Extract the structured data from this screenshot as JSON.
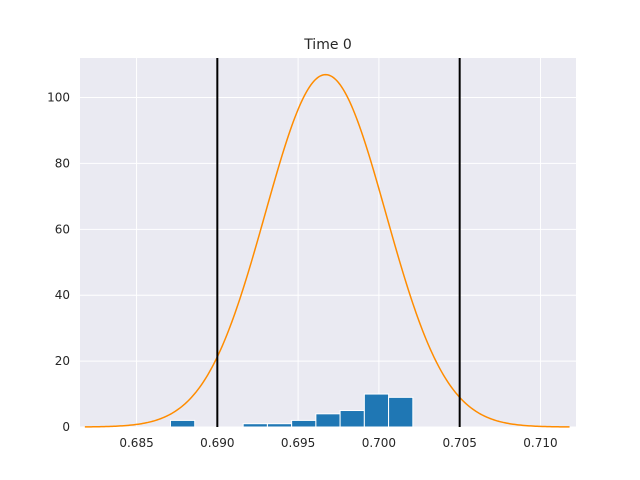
{
  "chart_data": {
    "type": "bar",
    "title": "Time 0",
    "xlabel": "",
    "ylabel": "",
    "xlim": [
      0.6815,
      0.7122
    ],
    "ylim": [
      0,
      112
    ],
    "grid": true,
    "x_ticks": [
      0.685,
      0.69,
      0.695,
      0.7,
      0.705,
      0.71
    ],
    "x_tick_labels": [
      "0.685",
      "0.690",
      "0.695",
      "0.700",
      "0.705",
      "0.710"
    ],
    "y_ticks": [
      0,
      20,
      40,
      60,
      80,
      100
    ],
    "y_tick_labels": [
      "0",
      "20",
      "40",
      "60",
      "80",
      "100"
    ],
    "histogram": {
      "color": "#1f77b4",
      "bins": [
        {
          "x0": 0.6871,
          "x1": 0.6886,
          "count": 2
        },
        {
          "x0": 0.6886,
          "x1": 0.6901,
          "count": 0
        },
        {
          "x0": 0.6901,
          "x1": 0.6916,
          "count": 0
        },
        {
          "x0": 0.6916,
          "x1": 0.6931,
          "count": 1
        },
        {
          "x0": 0.6931,
          "x1": 0.6946,
          "count": 1
        },
        {
          "x0": 0.6946,
          "x1": 0.6961,
          "count": 2
        },
        {
          "x0": 0.6961,
          "x1": 0.6976,
          "count": 4
        },
        {
          "x0": 0.6976,
          "x1": 0.6991,
          "count": 5
        },
        {
          "x0": 0.6991,
          "x1": 0.7006,
          "count": 10
        },
        {
          "x0": 0.7006,
          "x1": 0.7021,
          "count": 9
        }
      ]
    },
    "curve": {
      "color": "#ff8c00",
      "kind": "normal-density",
      "mean": 0.6967,
      "std": 0.00373,
      "x_range": [
        0.6818,
        0.7118
      ]
    },
    "vertical_lines": [
      {
        "x": 0.69,
        "color": "#000000"
      },
      {
        "x": 0.705,
        "color": "#000000"
      }
    ],
    "style": {
      "plot_background": "#eaeaf2",
      "grid_color": "#ffffff"
    }
  }
}
